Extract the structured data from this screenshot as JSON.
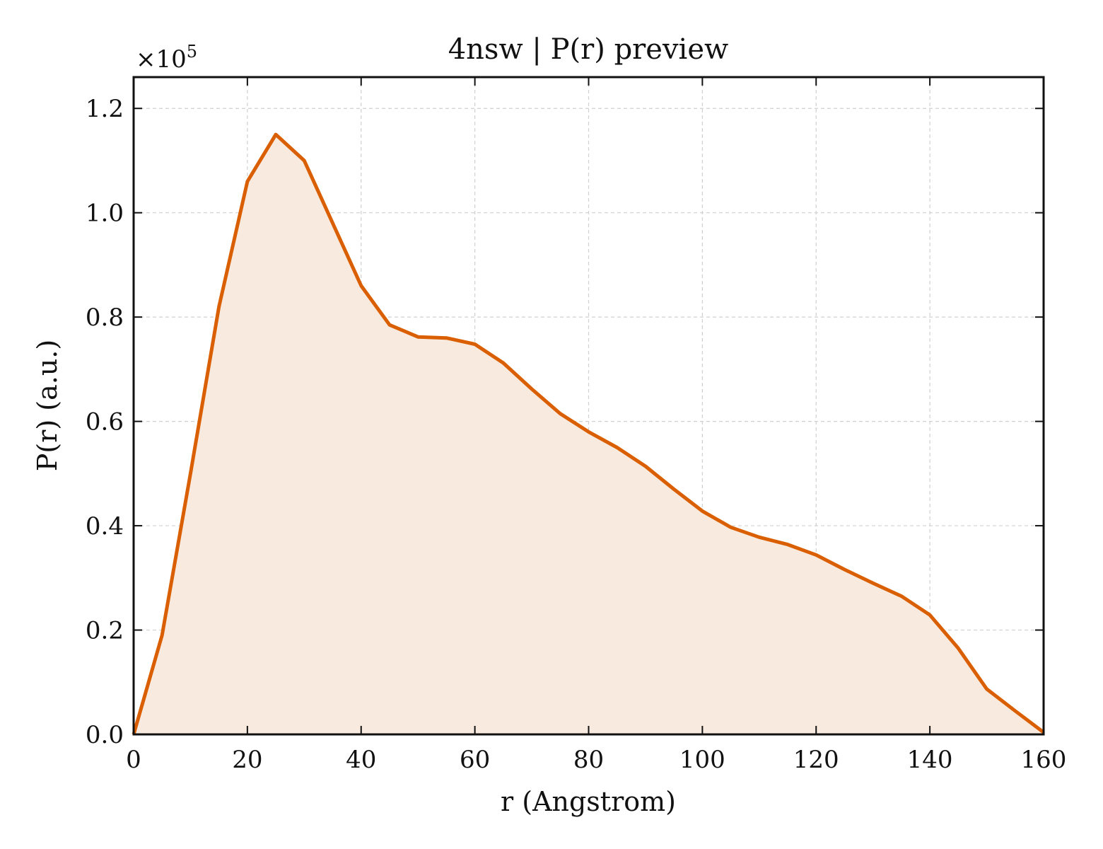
{
  "chart_data": {
    "type": "area",
    "title": "4nsw | P(r) preview",
    "xlabel": "r (Angstrom)",
    "ylabel": "P(r) (a.u.)",
    "y_multiplier_label": "×10",
    "y_multiplier_exponent": "5",
    "xlim": [
      0,
      160
    ],
    "ylim": [
      0,
      1.26
    ],
    "x_ticks": [
      0,
      20,
      40,
      60,
      80,
      100,
      120,
      140,
      160
    ],
    "x_tick_labels": [
      "0",
      "20",
      "40",
      "60",
      "80",
      "100",
      "120",
      "140",
      "160"
    ],
    "y_ticks": [
      0,
      0.2,
      0.4,
      0.6,
      0.8,
      1.0,
      1.2
    ],
    "y_tick_labels": [
      "0.0",
      "0.2",
      "0.4",
      "0.6",
      "0.8",
      "1.0",
      "1.2"
    ],
    "grid": true,
    "line_color": "#d95f02",
    "fill_color": "#f9eadf",
    "series": [
      {
        "x": [
          0,
          5,
          10,
          15,
          20,
          25,
          30,
          35,
          40,
          45,
          50,
          55,
          60,
          65,
          70,
          75,
          80,
          85,
          90,
          95,
          100,
          105,
          110,
          115,
          120,
          125,
          130,
          135,
          140,
          145,
          150,
          155,
          160
        ],
        "y": [
          0.0,
          0.19,
          0.5,
          0.82,
          1.06,
          1.15,
          1.1,
          0.98,
          0.86,
          0.785,
          0.762,
          0.76,
          0.748,
          0.712,
          0.662,
          0.615,
          0.58,
          0.55,
          0.514,
          0.47,
          0.428,
          0.397,
          0.378,
          0.364,
          0.344,
          0.316,
          0.29,
          0.265,
          0.229,
          0.165,
          0.087,
          0.045,
          0.004
        ]
      }
    ]
  }
}
